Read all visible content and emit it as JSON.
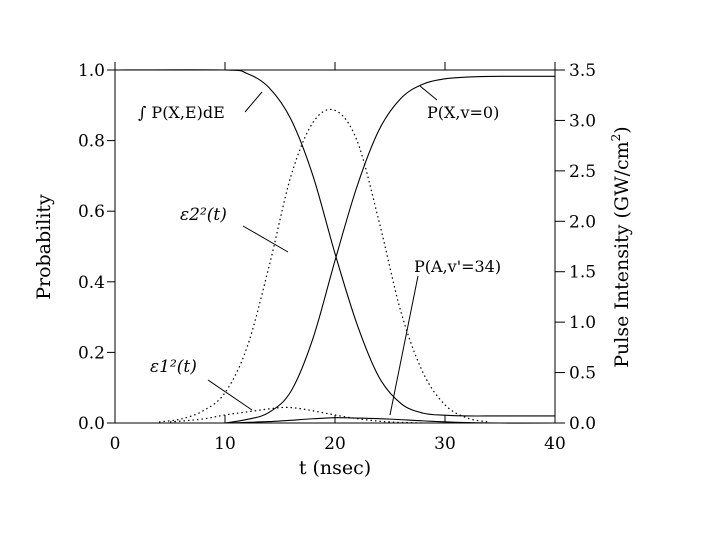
{
  "chart_data": {
    "type": "line",
    "xlabel": "t  (nsec)",
    "ylabel": "Probability",
    "y2label": "Pulse Intensity  (GW/cm2)",
    "xlim": [
      0,
      40
    ],
    "ylim": [
      0,
      1.0
    ],
    "y2lim": [
      0,
      3.5
    ],
    "grid": false,
    "xticks": [
      "0",
      "10",
      "20",
      "30",
      "40"
    ],
    "yticks": [
      "0.0",
      "0.2",
      "0.4",
      "0.6",
      "0.8",
      "1.0"
    ],
    "y2ticks": [
      "0.0",
      "0.5",
      "1.0",
      "1.5",
      "2.0",
      "2.5",
      "3.0",
      "3.5"
    ],
    "series": [
      {
        "name": "∫ P(X,E)dE",
        "axis": "left",
        "style": "solid",
        "x": [
          0,
          10,
          12,
          14,
          16,
          18,
          20,
          22,
          24,
          26,
          28,
          30,
          32,
          35,
          40
        ],
        "y": [
          1.0,
          1.0,
          0.99,
          0.95,
          0.86,
          0.7,
          0.48,
          0.28,
          0.13,
          0.055,
          0.028,
          0.022,
          0.02,
          0.02,
          0.02
        ]
      },
      {
        "name": "P(X,v=0)",
        "axis": "left",
        "style": "solid",
        "x": [
          10,
          12,
          14,
          16,
          18,
          20,
          22,
          24,
          26,
          28,
          30,
          32,
          35,
          40
        ],
        "y": [
          0.0,
          0.01,
          0.03,
          0.09,
          0.24,
          0.46,
          0.67,
          0.83,
          0.92,
          0.96,
          0.975,
          0.98,
          0.982,
          0.982
        ]
      },
      {
        "name": "P(A,v'=34)",
        "axis": "left",
        "style": "solid",
        "x": [
          10,
          14,
          18,
          20,
          22,
          25,
          28,
          31,
          35,
          40
        ],
        "y": [
          0.0,
          0.004,
          0.012,
          0.015,
          0.014,
          0.011,
          0.006,
          0.002,
          0.0,
          0.0
        ]
      },
      {
        "name": "ε2²(t)",
        "axis": "right",
        "style": "dotted",
        "x": [
          4,
          6,
          8,
          10,
          12,
          14,
          16,
          18,
          20,
          22,
          24,
          26,
          28,
          30,
          32,
          34
        ],
        "y": [
          0.01,
          0.04,
          0.12,
          0.3,
          0.75,
          1.55,
          2.45,
          2.98,
          3.1,
          2.8,
          2.0,
          1.1,
          0.5,
          0.18,
          0.05,
          0.01
        ]
      },
      {
        "name": "ε1²(t)",
        "axis": "right",
        "style": "dotted",
        "x": [
          5,
          8,
          10,
          12,
          14,
          15.5,
          17,
          19,
          21,
          23,
          25,
          28
        ],
        "y": [
          0.01,
          0.04,
          0.08,
          0.11,
          0.14,
          0.155,
          0.14,
          0.1,
          0.06,
          0.03,
          0.01,
          0.0
        ]
      }
    ],
    "annotations": {
      "integral": "∫ P(X,E)dE",
      "pxv0": "P(X,v=0)",
      "pav": "P(A,v'=34)",
      "eps2": "ε2²(t)",
      "eps1": "ε1²(t)"
    }
  }
}
